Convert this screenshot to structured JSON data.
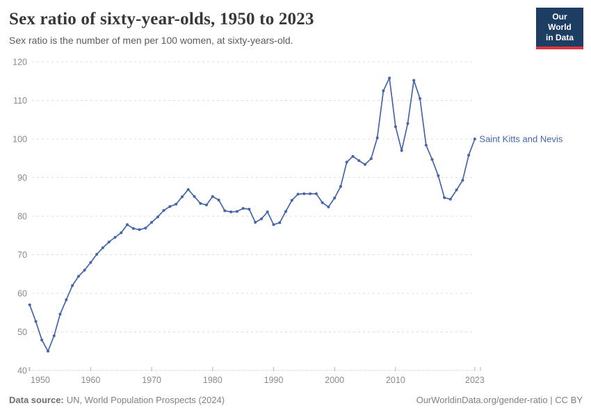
{
  "header": {
    "title": "Sex ratio of sixty-year-olds, 1950 to 2023",
    "subtitle": "Sex ratio is the number of men per 100 women, at sixty-years-old.",
    "logo": {
      "line1": "Our World",
      "line2": "in Data",
      "bg_color": "#1d3d63",
      "accent_color": "#e0363f"
    }
  },
  "chart_data": {
    "type": "line",
    "title": "Sex ratio of sixty-year-olds, 1950 to 2023",
    "subtitle": "Sex ratio is the number of men per 100 women, at sixty-years-old.",
    "series": [
      {
        "name": "Saint Kitts and Nevis",
        "color": "#4465a8",
        "x": [
          1950,
          1951,
          1952,
          1953,
          1954,
          1955,
          1956,
          1957,
          1958,
          1959,
          1960,
          1961,
          1962,
          1963,
          1964,
          1965,
          1966,
          1967,
          1968,
          1969,
          1970,
          1971,
          1972,
          1973,
          1974,
          1975,
          1976,
          1977,
          1978,
          1979,
          1980,
          1981,
          1982,
          1983,
          1984,
          1985,
          1986,
          1987,
          1988,
          1989,
          1990,
          1991,
          1992,
          1993,
          1994,
          1995,
          1996,
          1997,
          1998,
          1999,
          2000,
          2001,
          2002,
          2003,
          2004,
          2005,
          2006,
          2007,
          2008,
          2009,
          2010,
          2011,
          2012,
          2013,
          2014,
          2015,
          2016,
          2017,
          2018,
          2019,
          2020,
          2021,
          2022,
          2023
        ],
        "values": [
          57.0,
          52.7,
          47.9,
          45.0,
          49.0,
          54.6,
          58.3,
          62.0,
          64.4,
          66.0,
          68.0,
          70.1,
          71.8,
          73.3,
          74.5,
          75.7,
          77.8,
          76.8,
          76.5,
          76.9,
          78.4,
          79.8,
          81.5,
          82.5,
          83.1,
          85.0,
          86.9,
          85.1,
          83.3,
          82.9,
          85.1,
          84.2,
          81.4,
          81.1,
          81.2,
          82.0,
          81.8,
          78.4,
          79.3,
          81.1,
          77.8,
          78.3,
          81.2,
          84.1,
          85.7,
          85.8,
          85.8,
          85.8,
          83.5,
          82.4,
          84.7,
          87.7,
          94.0,
          95.5,
          94.4,
          93.4,
          94.9,
          100.3,
          112.5,
          115.8,
          103.2,
          97.0,
          104.0,
          115.2,
          110.5,
          98.4,
          94.7,
          90.5,
          84.8,
          84.4,
          86.8,
          89.3,
          95.8,
          100.0
        ]
      }
    ],
    "xlabel": "",
    "ylabel": "",
    "ylim": [
      40,
      120
    ],
    "yticks": [
      40,
      50,
      60,
      70,
      80,
      90,
      100,
      110,
      120
    ],
    "xticks": [
      1950,
      1960,
      1970,
      1980,
      1990,
      2000,
      2010,
      2023
    ],
    "grid": "horizontal-dashed",
    "legend_position": "end-of-line-label",
    "marker": "dot",
    "tick_color": "#8a8a8a",
    "grid_color": "#dcdcdc"
  },
  "footer": {
    "datasource_label": "Data source:",
    "datasource_text": "UN, World Population Prospects (2024)",
    "credit": "OurWorldinData.org/gender-ratio | CC BY"
  }
}
